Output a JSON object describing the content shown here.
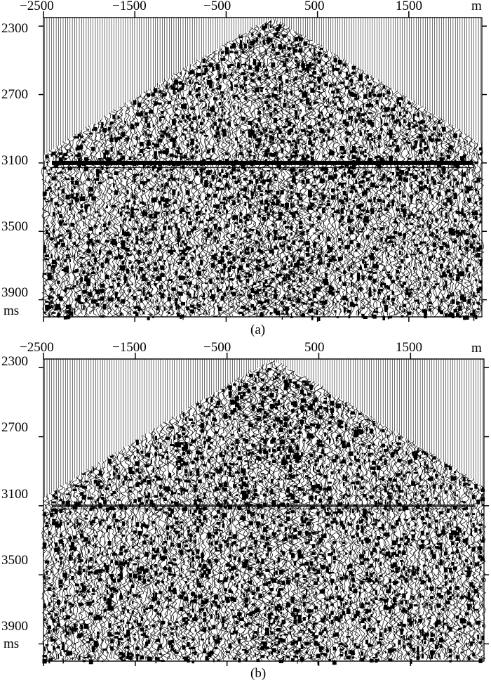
{
  "panels": [
    {
      "caption": "(a)",
      "x_ticks": [
        "−2500",
        "−1500",
        "−500",
        "500",
        "1500"
      ],
      "x_unit": "m",
      "y_ticks": [
        "2300",
        "2700",
        "3100",
        "3500",
        "3900"
      ],
      "y_unit": "ms",
      "event_strength": 1.0
    },
    {
      "caption": "(b)",
      "x_ticks": [
        "−2500",
        "−1500",
        "−500",
        "500",
        "1500"
      ],
      "x_unit": "m",
      "y_ticks": [
        "2300",
        "2700",
        "3100",
        "3500",
        "3900"
      ],
      "y_unit": "ms",
      "event_strength": 0.45
    }
  ],
  "axes": {
    "x_values": [
      -2500,
      -1500,
      -500,
      500,
      1500
    ],
    "x_range": [
      -2500,
      2300
    ],
    "y_values": [
      2300,
      2700,
      3100,
      3500,
      3900
    ],
    "y_range": [
      2250,
      4000
    ],
    "reflector_time_ms": 3100
  }
}
